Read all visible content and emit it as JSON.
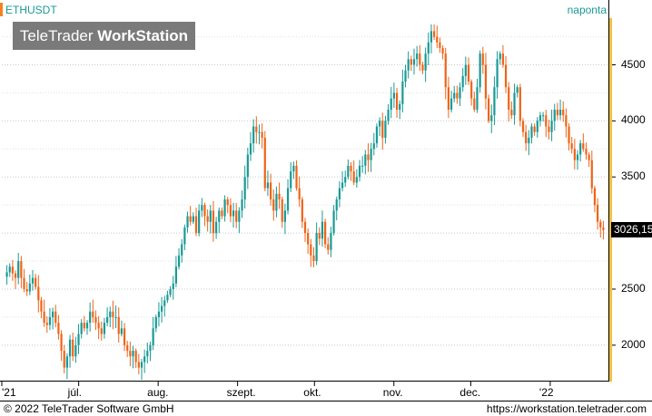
{
  "header": {
    "symbol": "ETHUSDT",
    "period": "naponta",
    "watermark_light": "TeleTrader ",
    "watermark_bold": "WorkStation"
  },
  "last_price": "3026,15",
  "footer": {
    "copyright": "© 2022  TeleTrader Software GmbH",
    "url": "https://workstation.teletrader.com"
  },
  "colors": {
    "up": "#1a9a96",
    "down": "#f06418",
    "grid": "#c8c8c8",
    "axis_accent": "#f0c040"
  },
  "chart_data": {
    "type": "candlestick",
    "title": "",
    "ylim": [
      1700,
      4900
    ],
    "y_ticks": [
      2000,
      2500,
      3000,
      3500,
      4000,
      4500
    ],
    "y_tick_labels": [
      "2000",
      "2500",
      "3000",
      "3500",
      "4000",
      "4500"
    ],
    "x_tick_labels": [
      "'21",
      "júl.",
      "aug.",
      "szept.",
      "okt.",
      "nov.",
      "dec.",
      "'22"
    ],
    "x_range": [
      "2021-06-01",
      "2022-01-23"
    ],
    "x_ticks": [
      "2021-06-01",
      "2021-07-01",
      "2021-08-01",
      "2021-09-01",
      "2021-10-01",
      "2021-11-01",
      "2021-12-01",
      "2022-01-01"
    ],
    "grid": true,
    "close_series": [
      2650,
      2700,
      2640,
      2600,
      2750,
      2600,
      2500,
      2480,
      2550,
      2600,
      2520,
      2400,
      2300,
      2200,
      2180,
      2250,
      2300,
      2200,
      2100,
      1950,
      1800,
      1900,
      2050,
      1900,
      2000,
      2100,
      2200,
      2150,
      2200,
      2300,
      2250,
      2200,
      2150,
      2100,
      2200,
      2250,
      2300,
      2250,
      2250,
      2100,
      2150,
      2000,
      1950,
      1900,
      1950,
      1850,
      1800,
      1850,
      1900,
      1950,
      2000,
      2150,
      2250,
      2300,
      2350,
      2400,
      2450,
      2500,
      2550,
      2700,
      2800,
      2900,
      3050,
      3150,
      3100,
      3150,
      3000,
      3200,
      3250,
      3150,
      3100,
      3200,
      3000,
      3100,
      3200,
      3150,
      3300,
      3250,
      3150,
      3200,
      3100,
      3200,
      3300,
      3500,
      3700,
      3800,
      3950,
      3900,
      3900,
      3850,
      3400,
      3450,
      3300,
      3200,
      3350,
      3300,
      3100,
      3200,
      3400,
      3550,
      3600,
      3400,
      3300,
      3100,
      3000,
      2900,
      2800,
      2750,
      3000,
      2950,
      3100,
      2900,
      2850,
      3000,
      3200,
      3300,
      3400,
      3450,
      3500,
      3600,
      3550,
      3450,
      3500,
      3600,
      3600,
      3700,
      3650,
      3750,
      3800,
      3950,
      4000,
      3850,
      4000,
      4100,
      4200,
      4250,
      4100,
      4150,
      4350,
      4450,
      4550,
      4500,
      4550,
      4600,
      4500,
      4450,
      4600,
      4700,
      4800,
      4750,
      4700,
      4650,
      4600,
      4300,
      4100,
      4200,
      4250,
      4200,
      4300,
      4400,
      4500,
      4350,
      4200,
      4100,
      4300,
      4600,
      4500,
      4200,
      4000,
      4050,
      4300,
      4550,
      4600,
      4500,
      4300,
      4100,
      4050,
      4250,
      4300,
      4000,
      3900,
      3800,
      3850,
      3950,
      3900,
      4000,
      4050,
      4050,
      3950,
      3900,
      4000,
      4100,
      4050,
      4100,
      4050,
      3950,
      3800,
      3750,
      3650,
      3700,
      3800,
      3750,
      3700,
      3650,
      3400,
      3250,
      3100,
      3050,
      3026
    ]
  }
}
